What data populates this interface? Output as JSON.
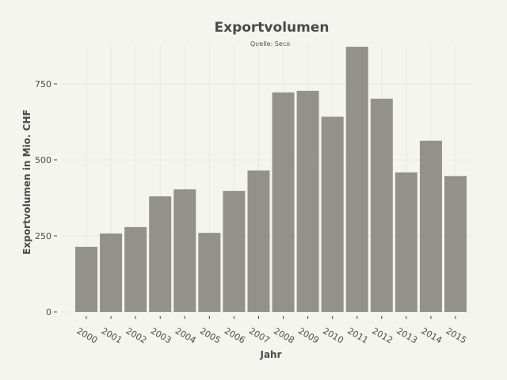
{
  "chart_data": {
    "type": "bar",
    "title": "Exportvolumen",
    "subtitle": "Quelle: Seco",
    "xlabel": "Jahr",
    "ylabel": "Exportvolumen in Mio. CHF",
    "categories": [
      "2000",
      "2001",
      "2002",
      "2003",
      "2004",
      "2005",
      "2006",
      "2007",
      "2008",
      "2009",
      "2010",
      "2011",
      "2012",
      "2013",
      "2014",
      "2015"
    ],
    "values": [
      214,
      258,
      279,
      380,
      403,
      260,
      398,
      465,
      722,
      727,
      642,
      872,
      701,
      459,
      563,
      447
    ],
    "ylim": [
      0,
      880
    ],
    "yticks": [
      0,
      250,
      500,
      750
    ],
    "grid": true,
    "legend": "none",
    "colors": {
      "bar": "#93918c",
      "background": "#f5f5f0",
      "grid": "#e8e8e3",
      "text": "#4a4a4a"
    }
  }
}
